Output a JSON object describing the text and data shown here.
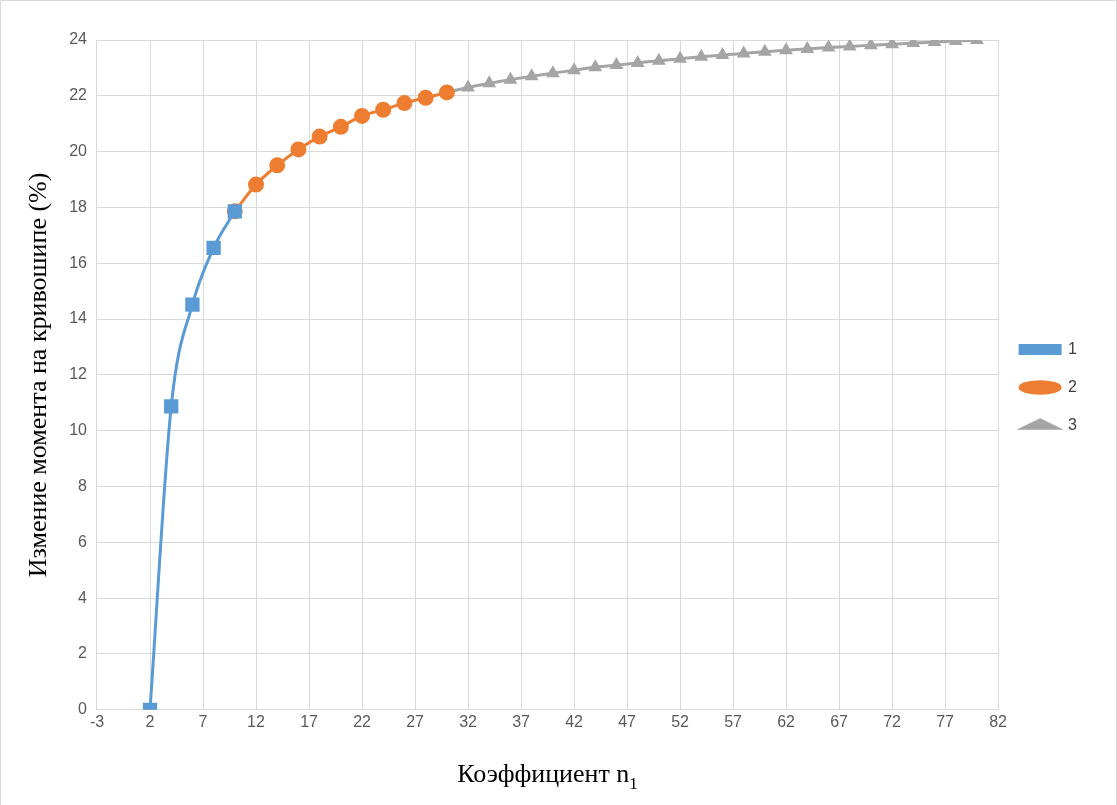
{
  "chart_data": {
    "type": "line",
    "xlabel": "Коэффициент n$_{1}$",
    "ylabel": "Измение момента на кривошипе (%)",
    "xlim": [
      -3,
      82
    ],
    "xticks": [
      -3,
      2,
      7,
      12,
      17,
      22,
      27,
      32,
      37,
      42,
      47,
      52,
      57,
      62,
      67,
      72,
      77,
      82
    ],
    "ylim": [
      0,
      24
    ],
    "yticks": [
      0,
      2,
      4,
      6,
      8,
      10,
      12,
      14,
      16,
      18,
      20,
      22,
      24
    ],
    "grid": true,
    "legend": "right",
    "series": [
      {
        "name": "1",
        "color": "#5b9bd5",
        "marker": "square",
        "x": [
          2,
          4,
          6,
          8,
          10
        ],
        "values": [
          0,
          10.87,
          14.52,
          16.55,
          17.86
        ]
      },
      {
        "name": "2",
        "color": "#ed7d31",
        "marker": "circle",
        "x": [
          10,
          12,
          14,
          16,
          18,
          20,
          22,
          24,
          26,
          28,
          30
        ],
        "values": [
          17.86,
          18.82,
          19.51,
          20.08,
          20.54,
          20.89,
          21.28,
          21.5,
          21.74,
          21.93,
          22.12
        ]
      },
      {
        "name": "3",
        "color": "#a5a5a5",
        "marker": "triangle",
        "x": [
          30,
          32,
          34,
          36,
          38,
          40,
          42,
          44,
          46,
          48,
          50,
          52,
          54,
          56,
          58,
          60,
          62,
          64,
          66,
          68,
          70,
          72,
          74,
          76,
          78,
          80
        ],
        "values": [
          22.12,
          22.3,
          22.45,
          22.58,
          22.7,
          22.81,
          22.92,
          23.02,
          23.1,
          23.18,
          23.26,
          23.33,
          23.4,
          23.46,
          23.52,
          23.58,
          23.63,
          23.68,
          23.73,
          23.77,
          23.81,
          23.85,
          23.89,
          23.93,
          23.96,
          24.0
        ]
      }
    ]
  }
}
